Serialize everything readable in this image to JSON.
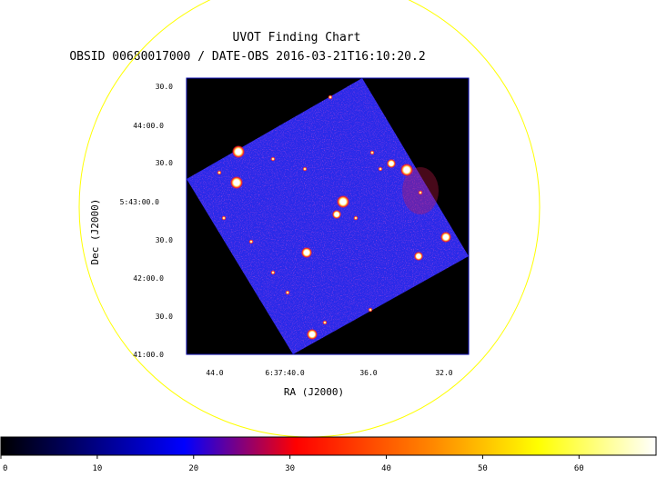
{
  "title": "UVOT Finding Chart",
  "subtitle": "OBSID 00680017000 / DATE-OBS 2016-03-21T16:10:20.2",
  "xlabel": "RA (J2000)",
  "ylabel": "Dec (J2000)",
  "ra_ticks": [
    "44.0",
    "6:37:40.0",
    "36.0",
    "32.0"
  ],
  "dec_ticks": [
    "30.0",
    "44:00.0",
    "30.0",
    "5:43:00.0",
    "30.0",
    "42:00.0",
    "30.0",
    "41:00.0"
  ],
  "colorbar": {
    "ticks": [
      "0",
      "10",
      "20",
      "30",
      "40",
      "50",
      "60"
    ],
    "range": [
      0,
      68
    ],
    "colormap": [
      "#000000",
      "#0000ff",
      "#ff0000",
      "#ffff00",
      "#ffffff"
    ]
  },
  "colors": {
    "circle": "#ffff00",
    "frame": "#0000aa",
    "background": "#000000",
    "exposure_fill": "#2a2ae6",
    "source_core": "#ffffff",
    "source_halo": "#ff2020"
  }
}
